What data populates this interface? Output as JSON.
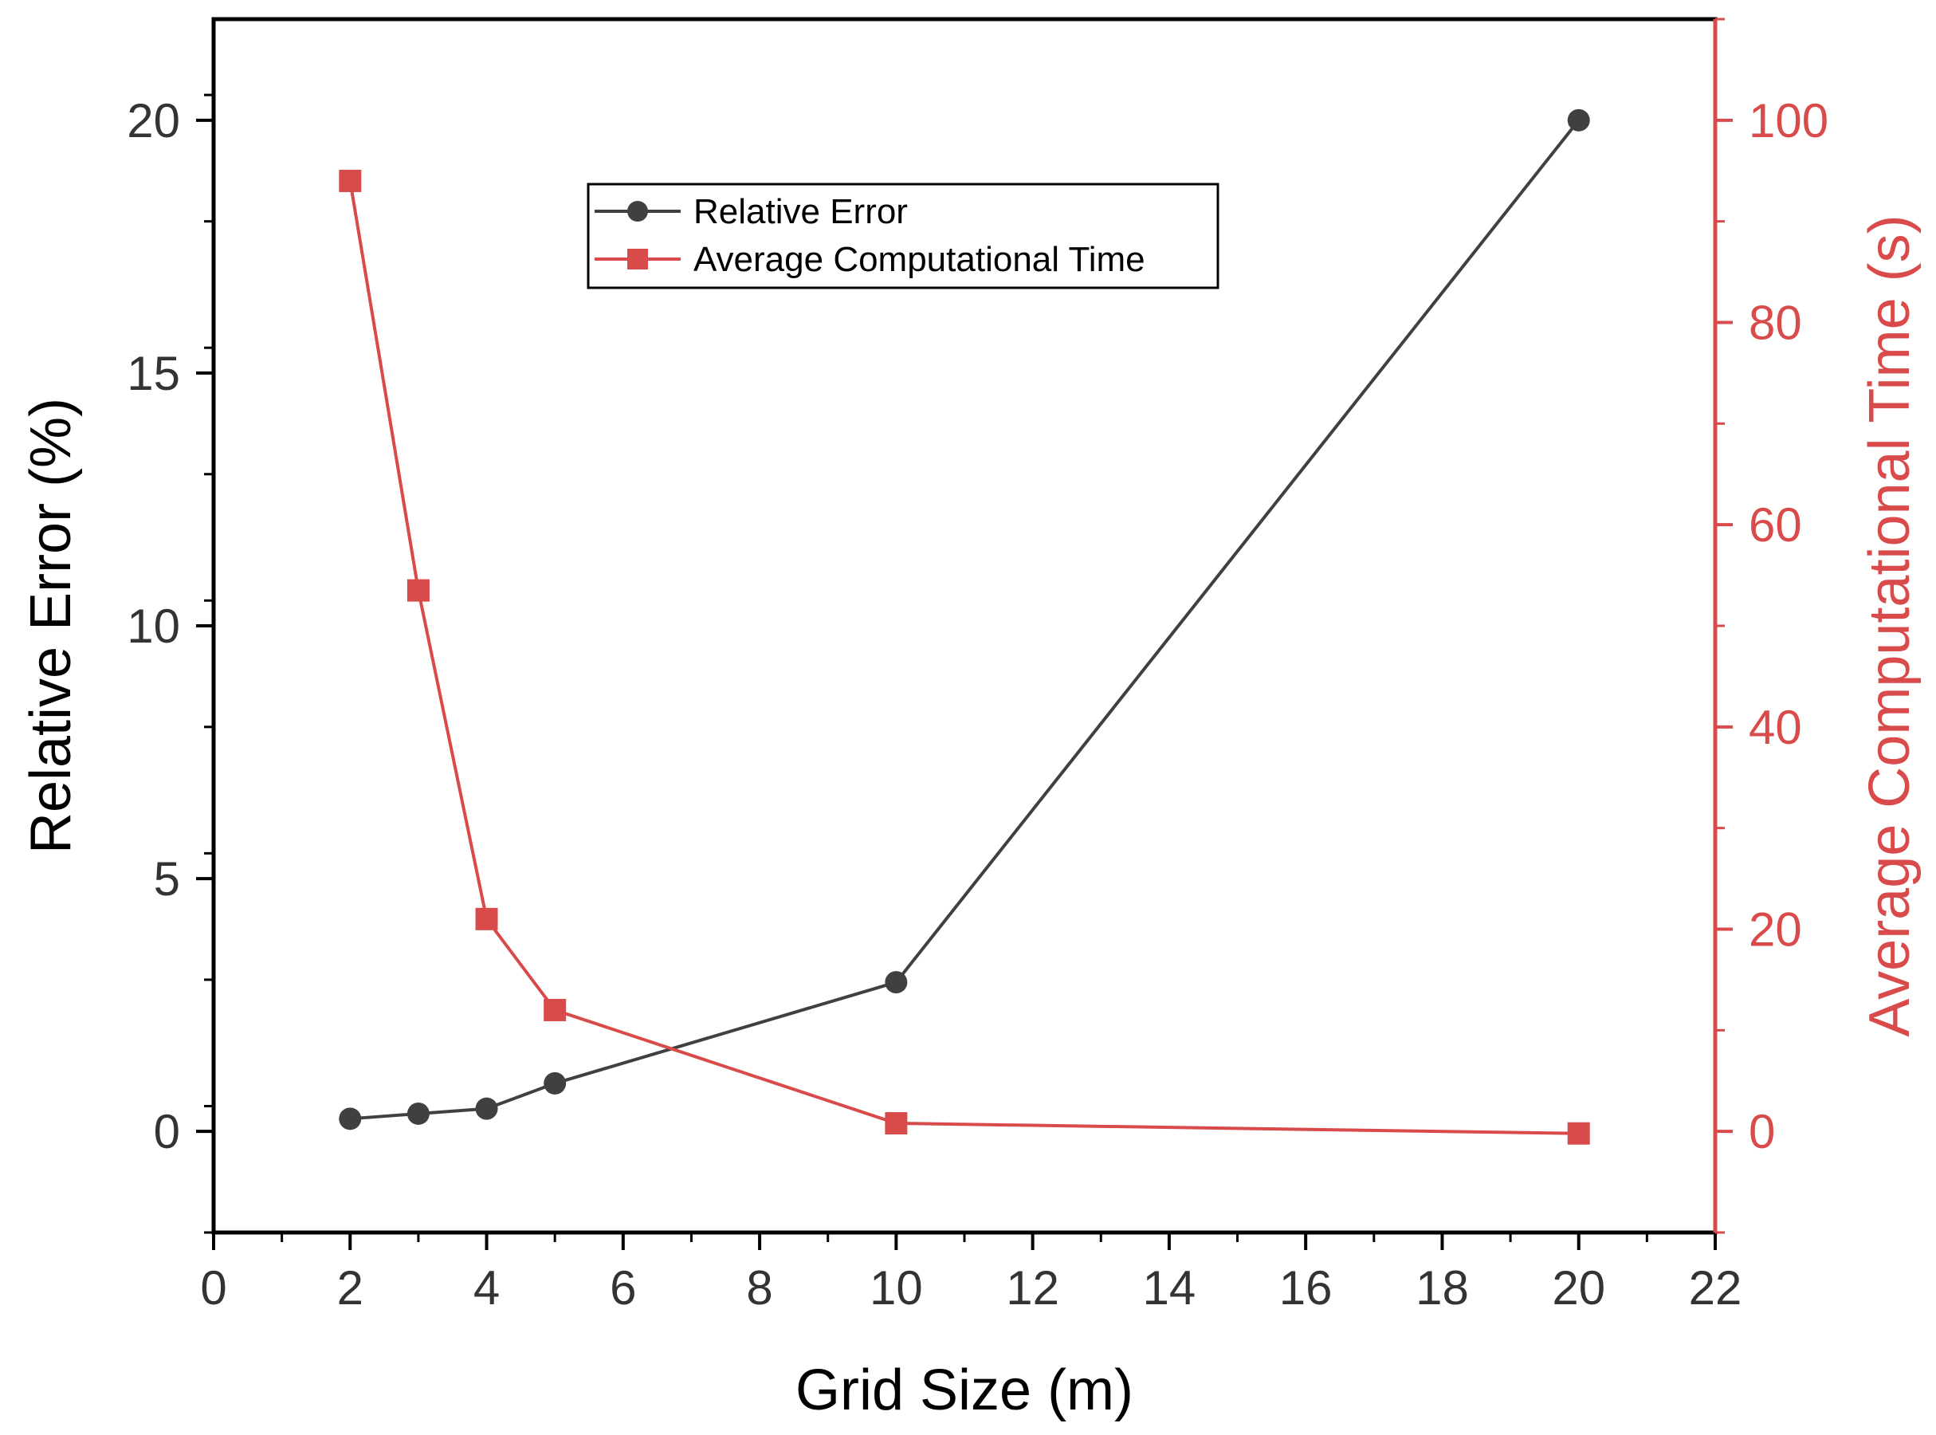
{
  "chart_data": {
    "type": "line",
    "xlabel": "Grid Size (m)",
    "ylabel_left": "Relative Error (%)",
    "ylabel_right": "Average Computational Time (s)",
    "xlim": [
      0,
      22
    ],
    "ylim_left": [
      -2,
      22
    ],
    "ylim_right": [
      -10,
      110
    ],
    "x_ticks": [
      "0",
      "2",
      "4",
      "6",
      "8",
      "10",
      "12",
      "14",
      "16",
      "18",
      "20",
      "22"
    ],
    "y_left_ticks": [
      "0",
      "5",
      "10",
      "15",
      "20"
    ],
    "y_right_ticks": [
      "0",
      "20",
      "40",
      "60",
      "80",
      "100"
    ],
    "x": [
      2,
      3,
      4,
      5,
      10,
      20
    ],
    "series": [
      {
        "name": "Relative Error",
        "axis": "left",
        "marker": "circle",
        "color": "#404040",
        "values": [
          0.25,
          0.35,
          0.45,
          0.95,
          2.95,
          20.0
        ]
      },
      {
        "name": "Average Computational Time",
        "axis": "right",
        "marker": "square",
        "color": "#d94a4a",
        "values": [
          94.0,
          53.5,
          21.0,
          12.0,
          0.8,
          -0.2
        ]
      }
    ],
    "legend": [
      "Relative Error",
      "Average Computational Time"
    ],
    "legend_position": "top-center",
    "grid": false
  }
}
